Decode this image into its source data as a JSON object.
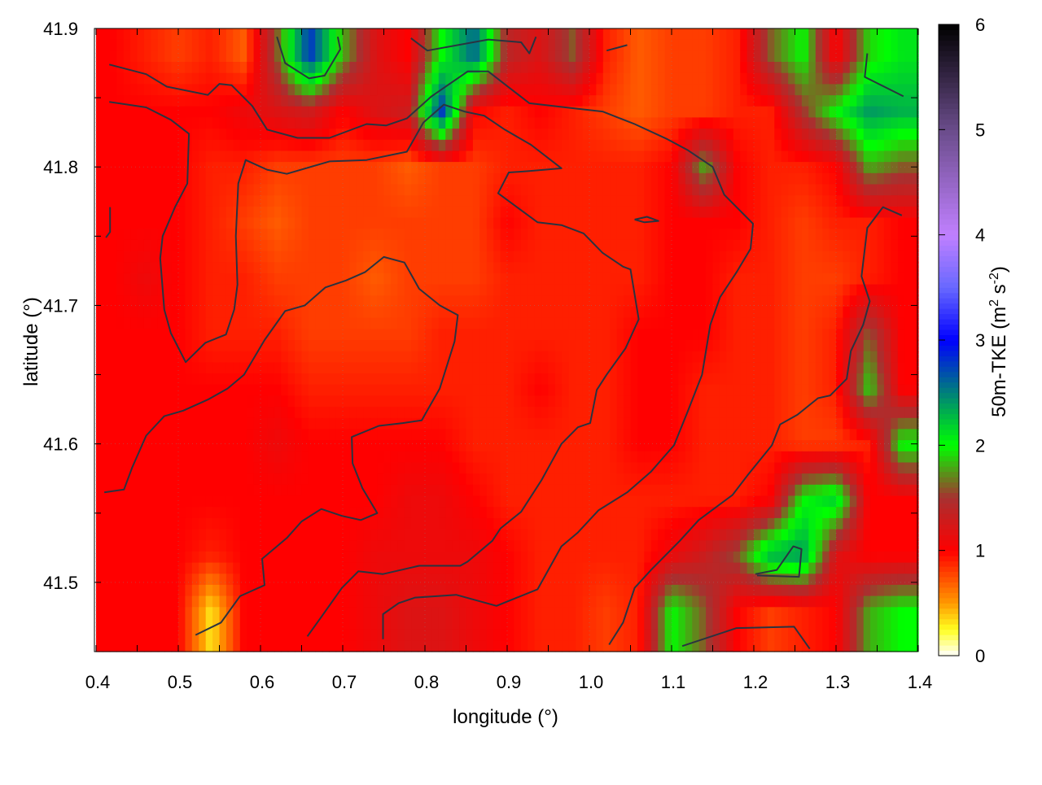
{
  "chart_data": {
    "type": "heatmap",
    "title": "",
    "xlabel": "longitude (°)",
    "ylabel": "latitude (°)",
    "xlim": [
      0.4,
      1.4
    ],
    "ylim": [
      41.45,
      41.9
    ],
    "grid": true,
    "xticks": [
      "0.4",
      "0.5",
      "0.6",
      "0.7",
      "0.8",
      "0.9",
      "1.0",
      "1.1",
      "1.2",
      "1.3",
      "1.4"
    ],
    "yticks": [
      "41.5",
      "41.6",
      "41.7",
      "41.8",
      "41.9"
    ],
    "colorbar": {
      "label_parts": [
        "50m-TKE (m",
        "2",
        " s",
        "-2",
        ")"
      ],
      "range": [
        0,
        6
      ],
      "ticks": [
        "0",
        "1",
        "2",
        "3",
        "4",
        "5",
        "6"
      ],
      "stops": [
        [
          0,
          "#ffffff"
        ],
        [
          0.25,
          "#ffff20"
        ],
        [
          0.5,
          "#ff9900"
        ],
        [
          1,
          "#ff0000"
        ],
        [
          1.5,
          "#a83030"
        ],
        [
          2,
          "#00ff00"
        ],
        [
          2.5,
          "#00807a"
        ],
        [
          3,
          "#0000ff"
        ],
        [
          3.5,
          "#6868ff"
        ],
        [
          4,
          "#c080ff"
        ],
        [
          5,
          "#6a4c8a"
        ],
        [
          6,
          "#000000"
        ]
      ]
    },
    "grid_lon": [
      0.42,
      0.46,
      0.5,
      0.54,
      0.58,
      0.62,
      0.66,
      0.7,
      0.74,
      0.78,
      0.82,
      0.86,
      0.9,
      0.94,
      0.98,
      1.02,
      1.06,
      1.1,
      1.14,
      1.18,
      1.22,
      1.26,
      1.3,
      1.34,
      1.38
    ],
    "grid_lat": [
      41.88,
      41.84,
      41.8,
      41.76,
      41.72,
      41.68,
      41.64,
      41.6,
      41.56,
      41.52,
      41.48
    ],
    "values": [
      [
        1.0,
        0.9,
        0.8,
        0.9,
        0.7,
        1.6,
        2.8,
        1.8,
        1.2,
        1.0,
        2.0,
        2.6,
        1.4,
        1.2,
        1.6,
        0.9,
        0.7,
        0.8,
        0.8,
        0.9,
        1.6,
        2.0,
        1.0,
        1.9,
        2.1
      ],
      [
        1.0,
        1.0,
        1.0,
        1.0,
        1.1,
        1.2,
        1.3,
        1.0,
        1.2,
        1.3,
        2.8,
        1.0,
        0.9,
        1.0,
        0.9,
        0.8,
        0.7,
        0.8,
        0.8,
        0.9,
        0.9,
        1.5,
        2.0,
        2.4,
        2.3
      ],
      [
        1.0,
        1.0,
        1.0,
        0.9,
        0.9,
        0.8,
        0.8,
        0.8,
        0.8,
        0.7,
        0.8,
        0.8,
        0.9,
        0.9,
        0.9,
        0.9,
        0.9,
        1.0,
        1.8,
        1.0,
        0.9,
        0.9,
        1.0,
        1.8,
        1.6
      ],
      [
        1.0,
        1.0,
        1.0,
        0.9,
        0.8,
        0.7,
        0.8,
        0.8,
        0.8,
        0.8,
        0.8,
        0.8,
        1.0,
        0.9,
        0.9,
        0.9,
        0.9,
        1.0,
        1.0,
        1.0,
        0.9,
        0.8,
        0.9,
        0.9,
        1.0
      ],
      [
        1.0,
        1.1,
        1.0,
        0.9,
        0.9,
        0.8,
        0.8,
        0.8,
        0.7,
        0.8,
        0.8,
        0.8,
        0.9,
        0.9,
        0.9,
        0.9,
        0.9,
        1.0,
        1.0,
        0.9,
        0.9,
        0.8,
        0.8,
        0.9,
        1.0
      ],
      [
        1.0,
        1.0,
        1.0,
        0.9,
        0.9,
        0.9,
        0.8,
        0.8,
        0.8,
        0.8,
        0.9,
        0.9,
        0.9,
        0.9,
        0.9,
        0.9,
        1.0,
        1.0,
        1.0,
        0.9,
        0.9,
        0.8,
        0.9,
        1.6,
        1.0
      ],
      [
        1.0,
        1.0,
        1.0,
        1.0,
        1.0,
        1.0,
        0.9,
        0.9,
        0.9,
        0.9,
        0.9,
        0.9,
        0.9,
        1.0,
        0.9,
        0.9,
        1.0,
        1.0,
        0.9,
        0.9,
        0.9,
        0.8,
        0.9,
        1.9,
        1.0
      ],
      [
        1.0,
        1.0,
        1.0,
        1.0,
        1.0,
        1.1,
        1.0,
        1.0,
        1.0,
        1.0,
        1.0,
        0.9,
        0.9,
        0.9,
        0.9,
        0.9,
        1.0,
        1.0,
        0.9,
        0.9,
        0.9,
        0.8,
        0.8,
        0.9,
        2.0
      ],
      [
        1.0,
        1.0,
        1.0,
        1.0,
        1.0,
        1.0,
        1.0,
        1.0,
        1.0,
        1.1,
        1.1,
        1.0,
        0.9,
        0.9,
        0.9,
        0.9,
        0.9,
        0.9,
        0.9,
        0.9,
        1.0,
        2.0,
        2.2,
        1.0,
        1.0
      ],
      [
        1.0,
        1.0,
        1.0,
        0.9,
        1.0,
        1.0,
        1.0,
        1.0,
        1.1,
        1.1,
        1.1,
        1.1,
        1.0,
        0.9,
        0.9,
        0.9,
        0.9,
        1.1,
        1.3,
        1.6,
        2.3,
        2.4,
        1.2,
        1.0,
        1.0
      ],
      [
        1.0,
        1.0,
        1.0,
        0.3,
        1.0,
        1.0,
        1.0,
        1.0,
        1.1,
        1.2,
        1.2,
        1.1,
        1.0,
        0.9,
        0.9,
        0.8,
        0.9,
        2.0,
        1.6,
        1.0,
        0.8,
        0.9,
        1.0,
        1.8,
        2.0
      ]
    ],
    "contour_color": "#2a3340",
    "contours": [
      [
        [
          0.416,
          41.874
        ],
        [
          0.461,
          41.867
        ],
        [
          0.486,
          41.858
        ],
        [
          0.536,
          41.852
        ],
        [
          0.55,
          41.86
        ],
        [
          0.565,
          41.859
        ],
        [
          0.59,
          41.844
        ],
        [
          0.608,
          41.827
        ],
        [
          0.645,
          41.821
        ],
        [
          0.684,
          41.821
        ],
        [
          0.729,
          41.831
        ],
        [
          0.753,
          41.83
        ],
        [
          0.778,
          41.835
        ],
        [
          0.808,
          41.851
        ],
        [
          0.852,
          41.869
        ],
        [
          0.877,
          41.869
        ],
        [
          0.927,
          41.846
        ],
        [
          0.986,
          41.842
        ],
        [
          1.016,
          41.84
        ],
        [
          1.055,
          41.831
        ],
        [
          1.095,
          41.82
        ],
        [
          1.12,
          41.812
        ],
        [
          1.15,
          41.8
        ],
        [
          1.164,
          41.78
        ],
        [
          1.199,
          41.759
        ],
        [
          1.196,
          41.741
        ],
        [
          1.179,
          41.724
        ],
        [
          1.159,
          41.706
        ],
        [
          1.147,
          41.686
        ],
        [
          1.137,
          41.65
        ],
        [
          1.12,
          41.624
        ],
        [
          1.103,
          41.599
        ],
        [
          1.075,
          41.58
        ],
        [
          1.046,
          41.565
        ],
        [
          1.011,
          41.552
        ],
        [
          0.986,
          41.536
        ],
        [
          0.966,
          41.526
        ],
        [
          0.937,
          41.495
        ],
        [
          0.887,
          41.483
        ],
        [
          0.838,
          41.491
        ],
        [
          0.788,
          41.489
        ],
        [
          0.768,
          41.485
        ],
        [
          0.749,
          41.477
        ],
        [
          0.749,
          41.459
        ]
      ],
      [
        [
          0.416,
          41.847
        ],
        [
          0.461,
          41.843
        ],
        [
          0.491,
          41.834
        ],
        [
          0.513,
          41.824
        ],
        [
          0.511,
          41.788
        ],
        [
          0.496,
          41.771
        ],
        [
          0.481,
          41.75
        ],
        [
          0.478,
          41.734
        ],
        [
          0.483,
          41.697
        ],
        [
          0.491,
          41.68
        ],
        [
          0.509,
          41.659
        ],
        [
          0.533,
          41.673
        ],
        [
          0.558,
          41.679
        ],
        [
          0.568,
          41.697
        ],
        [
          0.572,
          41.715
        ],
        [
          0.57,
          41.75
        ],
        [
          0.573,
          41.788
        ],
        [
          0.582,
          41.805
        ],
        [
          0.608,
          41.798
        ],
        [
          0.632,
          41.795
        ],
        [
          0.684,
          41.804
        ],
        [
          0.729,
          41.805
        ],
        [
          0.778,
          41.811
        ],
        [
          0.798,
          41.832
        ],
        [
          0.823,
          41.845
        ],
        [
          0.848,
          41.84
        ],
        [
          0.872,
          41.837
        ],
        [
          0.897,
          41.827
        ],
        [
          0.929,
          41.816
        ],
        [
          0.966,
          41.799
        ],
        [
          0.927,
          41.797
        ],
        [
          0.902,
          41.796
        ],
        [
          0.889,
          41.781
        ],
        [
          0.937,
          41.76
        ],
        [
          0.966,
          41.758
        ],
        [
          0.993,
          41.752
        ],
        [
          1.016,
          41.738
        ],
        [
          1.041,
          41.728
        ],
        [
          1.05,
          41.726
        ],
        [
          1.06,
          41.69
        ],
        [
          1.044,
          41.669
        ],
        [
          1.021,
          41.65
        ],
        [
          1.009,
          41.639
        ],
        [
          1.001,
          41.615
        ],
        [
          0.986,
          41.612
        ],
        [
          0.966,
          41.6
        ],
        [
          0.942,
          41.574
        ],
        [
          0.917,
          41.551
        ],
        [
          0.892,
          41.539
        ],
        [
          0.882,
          41.53
        ],
        [
          0.852,
          41.515
        ],
        [
          0.843,
          41.512
        ],
        [
          0.793,
          41.512
        ],
        [
          0.749,
          41.506
        ],
        [
          0.719,
          41.508
        ],
        [
          0.699,
          41.496
        ],
        [
          0.674,
          41.475
        ],
        [
          0.657,
          41.461
        ]
      ],
      [
        [
          0.41,
          41.565
        ],
        [
          0.434,
          41.567
        ],
        [
          0.444,
          41.583
        ],
        [
          0.461,
          41.606
        ],
        [
          0.483,
          41.62
        ],
        [
          0.506,
          41.624
        ],
        [
          0.536,
          41.632
        ],
        [
          0.56,
          41.64
        ],
        [
          0.58,
          41.65
        ],
        [
          0.605,
          41.675
        ],
        [
          0.63,
          41.696
        ],
        [
          0.654,
          41.7
        ],
        [
          0.679,
          41.713
        ],
        [
          0.704,
          41.718
        ],
        [
          0.727,
          41.724
        ],
        [
          0.75,
          41.735
        ],
        [
          0.775,
          41.731
        ],
        [
          0.793,
          41.712
        ],
        [
          0.818,
          41.7
        ],
        [
          0.84,
          41.693
        ],
        [
          0.836,
          41.674
        ],
        [
          0.818,
          41.64
        ],
        [
          0.796,
          41.617
        ],
        [
          0.773,
          41.615
        ],
        [
          0.744,
          41.613
        ],
        [
          0.711,
          41.605
        ],
        [
          0.712,
          41.586
        ],
        [
          0.724,
          41.568
        ],
        [
          0.742,
          41.55
        ],
        [
          0.722,
          41.545
        ],
        [
          0.699,
          41.548
        ],
        [
          0.674,
          41.553
        ],
        [
          0.65,
          41.544
        ],
        [
          0.632,
          41.532
        ],
        [
          0.602,
          41.517
        ],
        [
          0.605,
          41.498
        ],
        [
          0.575,
          41.49
        ],
        [
          0.552,
          41.471
        ],
        [
          0.521,
          41.462
        ]
      ],
      [
        [
          1.024,
          41.455
        ],
        [
          1.041,
          41.471
        ],
        [
          1.055,
          41.496
        ],
        [
          1.075,
          41.509
        ],
        [
          1.11,
          41.53
        ],
        [
          1.133,
          41.545
        ],
        [
          1.174,
          41.563
        ],
        [
          1.192,
          41.577
        ],
        [
          1.222,
          41.599
        ],
        [
          1.232,
          41.614
        ],
        [
          1.253,
          41.621
        ],
        [
          1.278,
          41.633
        ],
        [
          1.293,
          41.635
        ],
        [
          1.313,
          41.647
        ],
        [
          1.318,
          41.667
        ],
        [
          1.333,
          41.686
        ],
        [
          1.341,
          41.703
        ],
        [
          1.331,
          41.721
        ],
        [
          1.338,
          41.756
        ],
        [
          1.357,
          41.771
        ],
        [
          1.38,
          41.765
        ]
      ],
      [
        [
          0.62,
          41.894
        ],
        [
          0.63,
          41.875
        ],
        [
          0.659,
          41.864
        ],
        [
          0.678,
          41.866
        ],
        [
          0.697,
          41.885
        ],
        [
          0.694,
          41.894
        ]
      ],
      [
        [
          0.783,
          41.893
        ],
        [
          0.803,
          41.884
        ],
        [
          0.877,
          41.892
        ],
        [
          0.917,
          41.89
        ],
        [
          0.927,
          41.882
        ],
        [
          0.935,
          41.894
        ]
      ],
      [
        [
          1.021,
          41.884
        ],
        [
          1.046,
          41.888
        ]
      ],
      [
        [
          1.055,
          41.762
        ],
        [
          1.07,
          41.764
        ],
        [
          1.084,
          41.761
        ],
        [
          1.067,
          41.76
        ],
        [
          1.055,
          41.762
        ]
      ],
      [
        [
          1.338,
          41.882
        ],
        [
          1.335,
          41.865
        ],
        [
          1.382,
          41.851
        ]
      ],
      [
        [
          0.417,
          41.771
        ],
        [
          0.417,
          41.753
        ],
        [
          0.412,
          41.749
        ]
      ],
      [
        [
          1.113,
          41.454
        ],
        [
          1.179,
          41.467
        ],
        [
          1.249,
          41.468
        ],
        [
          1.268,
          41.452
        ]
      ],
      [
        [
          1.202,
          41.506
        ],
        [
          1.228,
          41.509
        ],
        [
          1.248,
          41.526
        ],
        [
          1.258,
          41.524
        ],
        [
          1.255,
          41.504
        ],
        [
          1.204,
          41.505
        ]
      ]
    ]
  }
}
